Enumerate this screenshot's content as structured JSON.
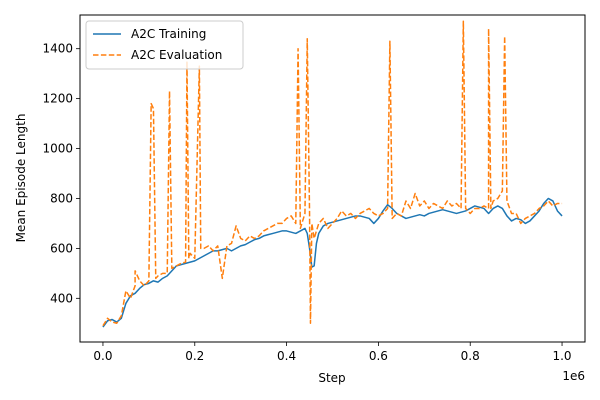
{
  "chart_data": {
    "type": "line",
    "xlabel": "Step",
    "ylabel": "Mean Episode Length",
    "x_offset_label": "1e6",
    "xlim": [
      -0.05,
      1.05
    ],
    "ylim": [
      225,
      1535
    ],
    "xticks": [
      0.0,
      0.2,
      0.4,
      0.6,
      0.8,
      1.0
    ],
    "xtick_labels": [
      "0.0",
      "0.2",
      "0.4",
      "0.6",
      "0.8",
      "1.0"
    ],
    "yticks": [
      400,
      600,
      800,
      1000,
      1200,
      1400
    ],
    "ytick_labels": [
      "400",
      "600",
      "800",
      "1000",
      "1200",
      "1400"
    ],
    "grid": false,
    "legend_position": "upper-left",
    "series": [
      {
        "name": "A2C Training",
        "color": "#1f77b4",
        "style": "solid",
        "points": [
          [
            0.0,
            285
          ],
          [
            0.01,
            310
          ],
          [
            0.02,
            315
          ],
          [
            0.03,
            305
          ],
          [
            0.04,
            320
          ],
          [
            0.05,
            380
          ],
          [
            0.06,
            410
          ],
          [
            0.07,
            420
          ],
          [
            0.08,
            440
          ],
          [
            0.09,
            455
          ],
          [
            0.1,
            460
          ],
          [
            0.11,
            470
          ],
          [
            0.12,
            465
          ],
          [
            0.13,
            480
          ],
          [
            0.14,
            490
          ],
          [
            0.15,
            510
          ],
          [
            0.16,
            530
          ],
          [
            0.17,
            535
          ],
          [
            0.18,
            540
          ],
          [
            0.19,
            545
          ],
          [
            0.2,
            550
          ],
          [
            0.21,
            560
          ],
          [
            0.22,
            570
          ],
          [
            0.23,
            580
          ],
          [
            0.24,
            590
          ],
          [
            0.25,
            590
          ],
          [
            0.26,
            595
          ],
          [
            0.27,
            600
          ],
          [
            0.28,
            590
          ],
          [
            0.29,
            600
          ],
          [
            0.3,
            610
          ],
          [
            0.31,
            615
          ],
          [
            0.32,
            625
          ],
          [
            0.33,
            635
          ],
          [
            0.34,
            640
          ],
          [
            0.35,
            650
          ],
          [
            0.36,
            655
          ],
          [
            0.37,
            660
          ],
          [
            0.38,
            665
          ],
          [
            0.39,
            670
          ],
          [
            0.4,
            670
          ],
          [
            0.41,
            665
          ],
          [
            0.42,
            660
          ],
          [
            0.43,
            670
          ],
          [
            0.44,
            680
          ],
          [
            0.445,
            660
          ],
          [
            0.45,
            600
          ],
          [
            0.455,
            525
          ],
          [
            0.46,
            530
          ],
          [
            0.465,
            620
          ],
          [
            0.47,
            660
          ],
          [
            0.48,
            690
          ],
          [
            0.49,
            700
          ],
          [
            0.5,
            705
          ],
          [
            0.51,
            710
          ],
          [
            0.52,
            715
          ],
          [
            0.53,
            720
          ],
          [
            0.54,
            725
          ],
          [
            0.55,
            730
          ],
          [
            0.56,
            730
          ],
          [
            0.57,
            725
          ],
          [
            0.58,
            720
          ],
          [
            0.59,
            700
          ],
          [
            0.6,
            720
          ],
          [
            0.61,
            750
          ],
          [
            0.62,
            775
          ],
          [
            0.63,
            760
          ],
          [
            0.64,
            740
          ],
          [
            0.65,
            730
          ],
          [
            0.66,
            720
          ],
          [
            0.67,
            725
          ],
          [
            0.68,
            730
          ],
          [
            0.69,
            735
          ],
          [
            0.7,
            730
          ],
          [
            0.71,
            740
          ],
          [
            0.72,
            745
          ],
          [
            0.73,
            750
          ],
          [
            0.74,
            755
          ],
          [
            0.75,
            750
          ],
          [
            0.76,
            745
          ],
          [
            0.77,
            740
          ],
          [
            0.78,
            745
          ],
          [
            0.79,
            750
          ],
          [
            0.8,
            760
          ],
          [
            0.81,
            770
          ],
          [
            0.82,
            765
          ],
          [
            0.83,
            760
          ],
          [
            0.84,
            740
          ],
          [
            0.85,
            760
          ],
          [
            0.86,
            770
          ],
          [
            0.87,
            760
          ],
          [
            0.88,
            730
          ],
          [
            0.89,
            710
          ],
          [
            0.9,
            720
          ],
          [
            0.91,
            715
          ],
          [
            0.92,
            700
          ],
          [
            0.93,
            710
          ],
          [
            0.94,
            730
          ],
          [
            0.95,
            750
          ],
          [
            0.96,
            780
          ],
          [
            0.97,
            800
          ],
          [
            0.98,
            790
          ],
          [
            0.99,
            750
          ],
          [
            1.0,
            730
          ]
        ]
      },
      {
        "name": "A2C Evaluation",
        "color": "#ff7f0e",
        "style": "dashed",
        "points": [
          [
            0.0,
            290
          ],
          [
            0.01,
            320
          ],
          [
            0.02,
            305
          ],
          [
            0.03,
            300
          ],
          [
            0.04,
            330
          ],
          [
            0.05,
            430
          ],
          [
            0.06,
            400
          ],
          [
            0.07,
            450
          ],
          [
            0.07,
            510
          ],
          [
            0.08,
            470
          ],
          [
            0.09,
            450
          ],
          [
            0.1,
            470
          ],
          [
            0.105,
            1180
          ],
          [
            0.11,
            1160
          ],
          [
            0.115,
            480
          ],
          [
            0.12,
            490
          ],
          [
            0.13,
            500
          ],
          [
            0.14,
            500
          ],
          [
            0.145,
            1230
          ],
          [
            0.15,
            520
          ],
          [
            0.16,
            530
          ],
          [
            0.17,
            540
          ],
          [
            0.18,
            545
          ],
          [
            0.183,
            1350
          ],
          [
            0.187,
            560
          ],
          [
            0.19,
            580
          ],
          [
            0.2,
            560
          ],
          [
            0.21,
            1330
          ],
          [
            0.213,
            600
          ],
          [
            0.22,
            600
          ],
          [
            0.23,
            610
          ],
          [
            0.24,
            590
          ],
          [
            0.25,
            610
          ],
          [
            0.26,
            480
          ],
          [
            0.27,
            610
          ],
          [
            0.28,
            620
          ],
          [
            0.29,
            690
          ],
          [
            0.3,
            640
          ],
          [
            0.31,
            630
          ],
          [
            0.32,
            650
          ],
          [
            0.33,
            640
          ],
          [
            0.34,
            650
          ],
          [
            0.35,
            670
          ],
          [
            0.36,
            680
          ],
          [
            0.37,
            690
          ],
          [
            0.38,
            700
          ],
          [
            0.39,
            700
          ],
          [
            0.4,
            720
          ],
          [
            0.41,
            730
          ],
          [
            0.42,
            700
          ],
          [
            0.425,
            1400
          ],
          [
            0.43,
            680
          ],
          [
            0.44,
            740
          ],
          [
            0.445,
            1440
          ],
          [
            0.45,
            740
          ],
          [
            0.452,
            300
          ],
          [
            0.455,
            700
          ],
          [
            0.46,
            640
          ],
          [
            0.47,
            700
          ],
          [
            0.48,
            720
          ],
          [
            0.49,
            680
          ],
          [
            0.5,
            700
          ],
          [
            0.51,
            720
          ],
          [
            0.52,
            750
          ],
          [
            0.53,
            730
          ],
          [
            0.54,
            740
          ],
          [
            0.55,
            720
          ],
          [
            0.56,
            740
          ],
          [
            0.57,
            750
          ],
          [
            0.58,
            760
          ],
          [
            0.59,
            740
          ],
          [
            0.6,
            730
          ],
          [
            0.61,
            740
          ],
          [
            0.62,
            760
          ],
          [
            0.625,
            1430
          ],
          [
            0.63,
            720
          ],
          [
            0.64,
            740
          ],
          [
            0.65,
            730
          ],
          [
            0.66,
            790
          ],
          [
            0.67,
            760
          ],
          [
            0.68,
            820
          ],
          [
            0.69,
            770
          ],
          [
            0.7,
            790
          ],
          [
            0.71,
            760
          ],
          [
            0.72,
            780
          ],
          [
            0.73,
            770
          ],
          [
            0.74,
            760
          ],
          [
            0.75,
            790
          ],
          [
            0.76,
            770
          ],
          [
            0.77,
            780
          ],
          [
            0.78,
            760
          ],
          [
            0.785,
            1510
          ],
          [
            0.79,
            760
          ],
          [
            0.8,
            740
          ],
          [
            0.81,
            760
          ],
          [
            0.82,
            760
          ],
          [
            0.83,
            770
          ],
          [
            0.84,
            760
          ],
          [
            0.84,
            1480
          ],
          [
            0.845,
            760
          ],
          [
            0.85,
            790
          ],
          [
            0.86,
            800
          ],
          [
            0.87,
            830
          ],
          [
            0.875,
            1450
          ],
          [
            0.88,
            790
          ],
          [
            0.89,
            740
          ],
          [
            0.9,
            740
          ],
          [
            0.91,
            700
          ],
          [
            0.92,
            720
          ],
          [
            0.93,
            730
          ],
          [
            0.94,
            740
          ],
          [
            0.95,
            760
          ],
          [
            0.96,
            770
          ],
          [
            0.97,
            790
          ],
          [
            0.98,
            770
          ],
          [
            0.99,
            780
          ],
          [
            1.0,
            780
          ]
        ]
      }
    ]
  }
}
